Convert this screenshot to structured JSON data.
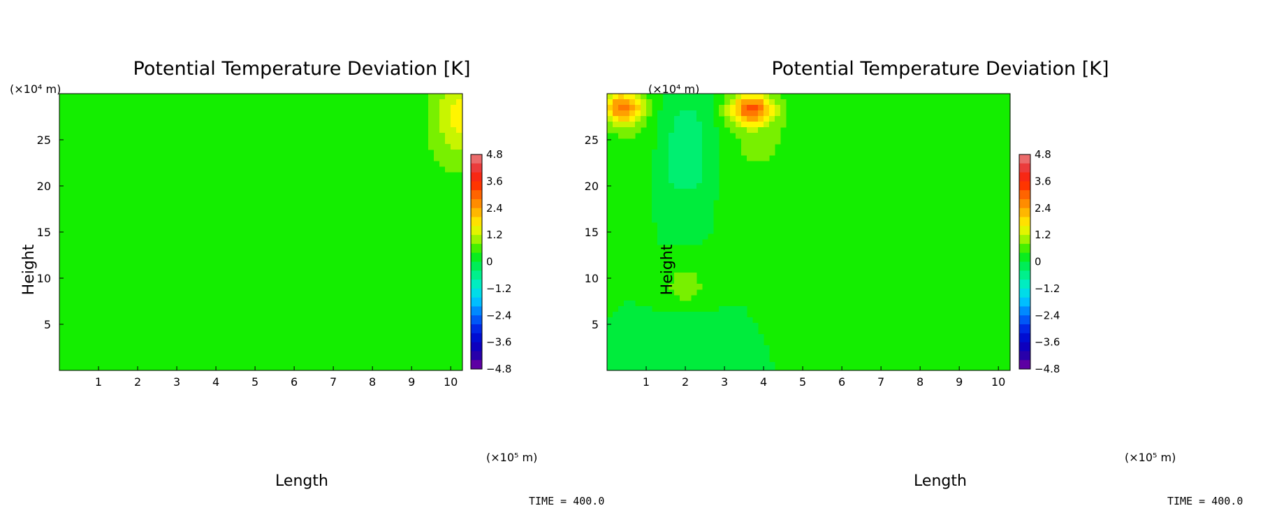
{
  "chart_data": [
    {
      "type": "heatmap",
      "title": "Potential Temperature Deviation [K]",
      "xlabel": "Length",
      "ylabel": "Height",
      "x_unit": "(×10⁵ m)",
      "y_unit": "(×10⁴ m)",
      "xlim": [
        0,
        10.3
      ],
      "ylim": [
        0,
        30
      ],
      "x_ticks": [
        1,
        2,
        3,
        4,
        5,
        6,
        7,
        8,
        9,
        10
      ],
      "y_ticks": [
        5,
        10,
        15,
        20,
        25
      ],
      "background_value": 0.2,
      "features": [
        {
          "x": 10.3,
          "y": 28.0,
          "rx": 0.7,
          "ry": 4.5,
          "value": 1.3
        },
        {
          "x": 10.0,
          "y": 25.0,
          "rx": 1.1,
          "ry": 7.0,
          "value": 0.55
        }
      ],
      "colorbar": {
        "min": -4.8,
        "max": 4.8,
        "step": 0.4,
        "labels": [
          "4.8",
          "3.6",
          "2.4",
          "1.2",
          "0",
          "−1.2",
          "−2.4",
          "−3.6",
          "−4.8"
        ]
      },
      "time_label": "TIME = 400.0"
    },
    {
      "type": "heatmap",
      "title": "Potential Temperature Deviation [K]",
      "xlabel": "Length",
      "ylabel": "Height",
      "x_unit": "(×10⁵ m)",
      "y_unit": "(×10⁴ m)",
      "xlim": [
        0,
        10.3
      ],
      "ylim": [
        0,
        30
      ],
      "x_ticks": [
        1,
        2,
        3,
        4,
        5,
        6,
        7,
        8,
        9,
        10
      ],
      "y_ticks": [
        5,
        10,
        15,
        20,
        25
      ],
      "background_value": 0.2,
      "features": [
        {
          "x": 0.6,
          "y": 26.0,
          "rx": 0.9,
          "ry": 6.0,
          "value": 0.6
        },
        {
          "x": 0.4,
          "y": 28.5,
          "rx": 0.5,
          "ry": 1.6,
          "value": 2.6
        },
        {
          "x": 3.8,
          "y": 25.5,
          "rx": 1.2,
          "ry": 6.5,
          "value": 0.7
        },
        {
          "x": 3.7,
          "y": 28.3,
          "rx": 0.55,
          "ry": 1.6,
          "value": 2.7
        },
        {
          "x": 2.05,
          "y": 25.0,
          "rx": 0.8,
          "ry": 5.5,
          "value": -0.5
        },
        {
          "x": 2.0,
          "y": 21.0,
          "rx": 0.5,
          "ry": 1.5,
          "value": -0.15
        },
        {
          "x": 2.0,
          "y": 9.2,
          "rx": 0.5,
          "ry": 2.2,
          "value": 0.9
        },
        {
          "x": 2.0,
          "y": 3.0,
          "rx": 0.6,
          "ry": 3.0,
          "value": -0.1
        }
      ],
      "colorbar": {
        "min": -4.8,
        "max": 4.8,
        "step": 0.4,
        "labels": [
          "4.8",
          "3.6",
          "2.4",
          "1.2",
          "0",
          "−1.2",
          "−2.4",
          "−3.6",
          "−4.8"
        ]
      },
      "time_label": "TIME = 400.0"
    }
  ]
}
